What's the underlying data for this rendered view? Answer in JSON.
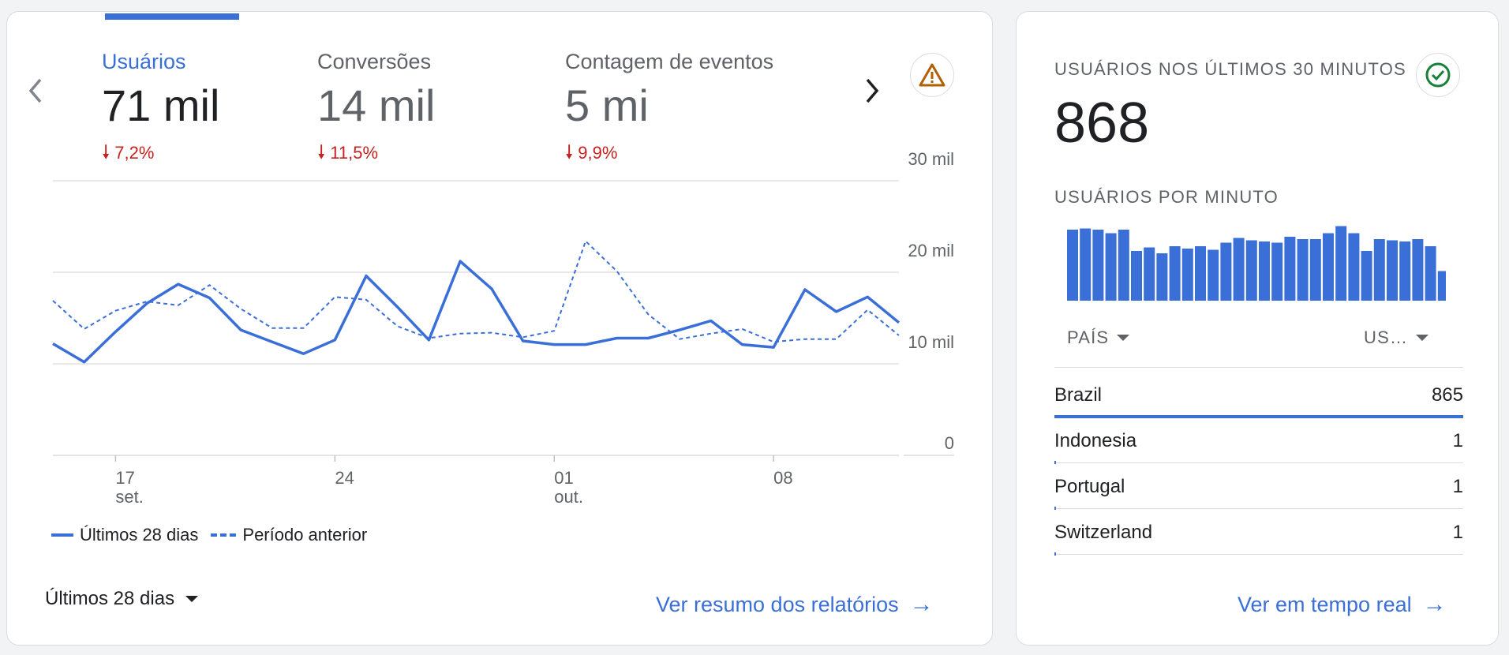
{
  "main_card": {
    "metrics": [
      {
        "label": "Usuários",
        "value": "71 mil",
        "delta": "7,2%",
        "active": true
      },
      {
        "label": "Conversões",
        "value": "14 mil",
        "delta": "11,5%",
        "active": false
      },
      {
        "label": "Contagem de eventos",
        "value": "5 mi",
        "delta": "9,9%",
        "active": false
      }
    ],
    "prev_icon": "chevron-left-icon",
    "next_icon": "chevron-right-icon",
    "alert_icon": "warning-triangle-icon",
    "period_label": "Últimos 28 dias",
    "link_label": "Ver resumo dos relatórios"
  },
  "chart_data": {
    "type": "line",
    "y_ticks": [
      "30 mil",
      "20 mil",
      "10 mil",
      "0"
    ],
    "ylim": [
      0,
      30000
    ],
    "x_ticks": [
      {
        "day": "17",
        "month": "set.",
        "index": 2
      },
      {
        "day": "24",
        "month": "",
        "index": 9
      },
      {
        "day": "01",
        "month": "out.",
        "index": 16
      },
      {
        "day": "08",
        "month": "",
        "index": 23
      }
    ],
    "series": [
      {
        "name": "Últimos 28 dias",
        "style": "solid",
        "values": [
          12200,
          10200,
          13500,
          16600,
          18700,
          17200,
          13700,
          12400,
          11100,
          12600,
          19600,
          16200,
          12600,
          21200,
          18200,
          12500,
          12100,
          12100,
          12800,
          12800,
          13700,
          14700,
          12100,
          11800,
          18100,
          15700,
          17300,
          14500
        ]
      },
      {
        "name": "Período anterior",
        "style": "dashed",
        "values": [
          16900,
          13800,
          15800,
          16800,
          16400,
          18600,
          16000,
          13900,
          13900,
          17300,
          17000,
          14100,
          12800,
          13300,
          13400,
          12900,
          13600,
          23400,
          20100,
          15400,
          12700,
          13300,
          13800,
          12400,
          12700,
          12700,
          15900,
          13100
        ]
      }
    ],
    "legend": [
      "Últimos 28 dias",
      "Período anterior"
    ]
  },
  "realtime_card": {
    "title": "USUÁRIOS NOS ÚLTIMOS 30 MINUTOS",
    "count": "868",
    "status_icon": "check-circle-icon",
    "per_minute_title": "USUÁRIOS POR MINUTO",
    "per_minute_values": [
      30,
      30.5,
      30,
      28.5,
      30,
      21,
      22.5,
      20,
      23,
      22,
      23,
      21.5,
      24.5,
      26.5,
      25.5,
      25,
      24.5,
      27,
      26,
      26,
      28.5,
      31.5,
      28.5,
      21,
      26,
      25.5,
      25,
      26,
      23,
      12.5
    ],
    "col_country": "PAÍS",
    "col_users": "US…",
    "rows": [
      {
        "country": "Brazil",
        "users": "865",
        "share": 1.0
      },
      {
        "country": "Indonesia",
        "users": "1",
        "share": 0.002
      },
      {
        "country": "Portugal",
        "users": "1",
        "share": 0.002
      },
      {
        "country": "Switzerland",
        "users": "1",
        "share": 0.002
      }
    ],
    "link_label": "Ver em tempo real"
  },
  "colors": {
    "accent": "#3b6fd8",
    "negative": "#c5221f",
    "positive": "#188038",
    "warning": "#b06000"
  }
}
